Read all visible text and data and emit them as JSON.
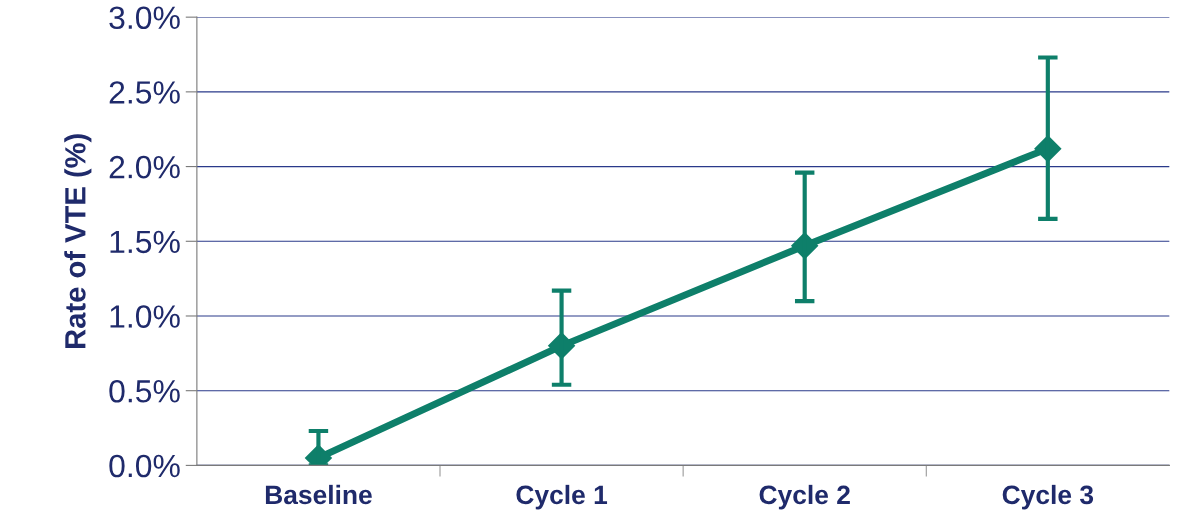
{
  "chart_data": {
    "type": "line",
    "ylabel": "Rate of VTE (%)",
    "categories": [
      "Baseline",
      "Cycle 1",
      "Cycle 2",
      "Cycle 3"
    ],
    "series": [
      {
        "color": "#0e7f6a",
        "values": [
          0.05,
          0.8,
          1.47,
          2.12
        ],
        "errors": [
          [
            0,
            0.23
          ],
          [
            0.54,
            1.17
          ],
          [
            1.1,
            1.96
          ],
          [
            1.65,
            2.73
          ]
        ]
      }
    ],
    "ylim": [
      0,
      3
    ],
    "yticks": [
      {
        "value": 0,
        "label": "0.0%"
      },
      {
        "value": 0.5,
        "label": "0.5%"
      },
      {
        "value": 1,
        "label": "1.0%"
      },
      {
        "value": 1.5,
        "label": "1.5%"
      },
      {
        "value": 2,
        "label": "2.0%"
      },
      {
        "value": 2.5,
        "label": "2.5%"
      },
      {
        "value": 3,
        "label": "3.0%"
      }
    ],
    "grid": "y",
    "marker": "diamond",
    "line_style": "solid"
  }
}
